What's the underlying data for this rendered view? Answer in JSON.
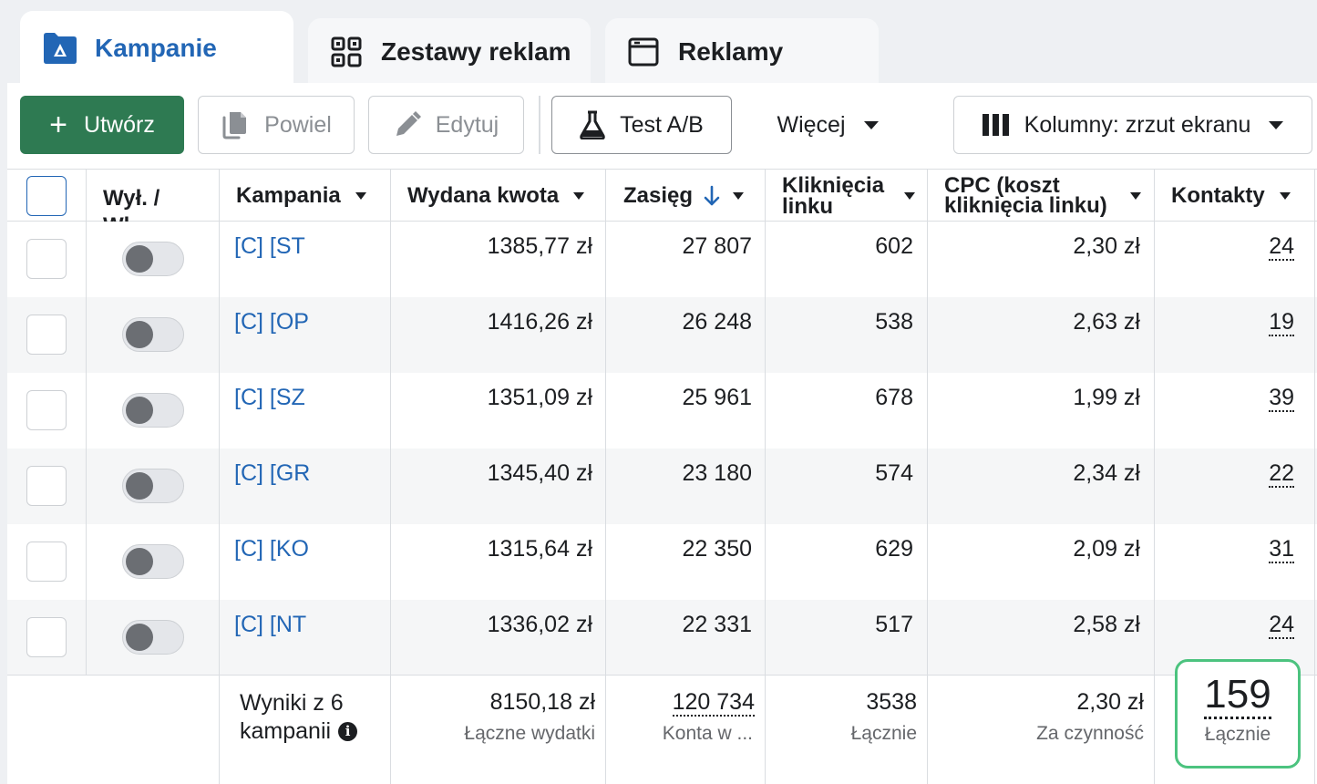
{
  "tabs": [
    {
      "label": "Kampanie",
      "icon": "folder-icon",
      "active": true
    },
    {
      "label": "Zestawy reklam",
      "icon": "grid-icon",
      "active": false
    },
    {
      "label": "Reklamy",
      "icon": "window-icon",
      "active": false
    }
  ],
  "toolbar": {
    "create_label": "Utwórz",
    "duplicate_label": "Powiel",
    "edit_label": "Edytuj",
    "ab_test_label": "Test A/B",
    "more_label": "Więcej",
    "columns_label": "Kolumny: zrzut ekranu"
  },
  "columns": {
    "toggle": "Wył. / Wł.",
    "campaign": "Kampania",
    "spent": "Wydana kwota",
    "reach": "Zasięg",
    "clicks": "Kliknięcia linku",
    "cpc": "CPC (koszt kliknięcia linku)",
    "contacts": "Kontakty"
  },
  "rows": [
    {
      "campaign": "[C] [ST",
      "spent": "1385,77 zł",
      "reach": "27 807",
      "clicks": "602",
      "cpc": "2,30 zł",
      "contacts": "24"
    },
    {
      "campaign": "[C] [OP",
      "spent": "1416,26 zł",
      "reach": "26 248",
      "clicks": "538",
      "cpc": "2,63 zł",
      "contacts": "19"
    },
    {
      "campaign": "[C] [SZ",
      "spent": "1351,09 zł",
      "reach": "25 961",
      "clicks": "678",
      "cpc": "1,99 zł",
      "contacts": "39"
    },
    {
      "campaign": "[C] [GR",
      "spent": "1345,40 zł",
      "reach": "23 180",
      "clicks": "574",
      "cpc": "2,34 zł",
      "contacts": "22"
    },
    {
      "campaign": "[C] [KO",
      "spent": "1315,64 zł",
      "reach": "22 350",
      "clicks": "629",
      "cpc": "2,09 zł",
      "contacts": "31"
    },
    {
      "campaign": "[C] [NT",
      "spent": "1336,02 zł",
      "reach": "22 331",
      "clicks": "517",
      "cpc": "2,58 zł",
      "contacts": "24"
    }
  ],
  "summary": {
    "label_line1": "Wyniki z 6",
    "label_line2": "kampanii",
    "spent": "8150,18 zł",
    "spent_sub": "Łączne wydatki",
    "reach": "120 734",
    "reach_sub": "Konta w ...",
    "clicks": "3538",
    "clicks_sub": "Łącznie",
    "cpc": "2,30 zł",
    "cpc_sub": "Za czynność",
    "contacts": "159",
    "contacts_sub": "Łącznie"
  },
  "colors": {
    "accent_blue": "#2266b5",
    "create_green": "#2e7a52",
    "highlight_green": "#4cc37f"
  }
}
